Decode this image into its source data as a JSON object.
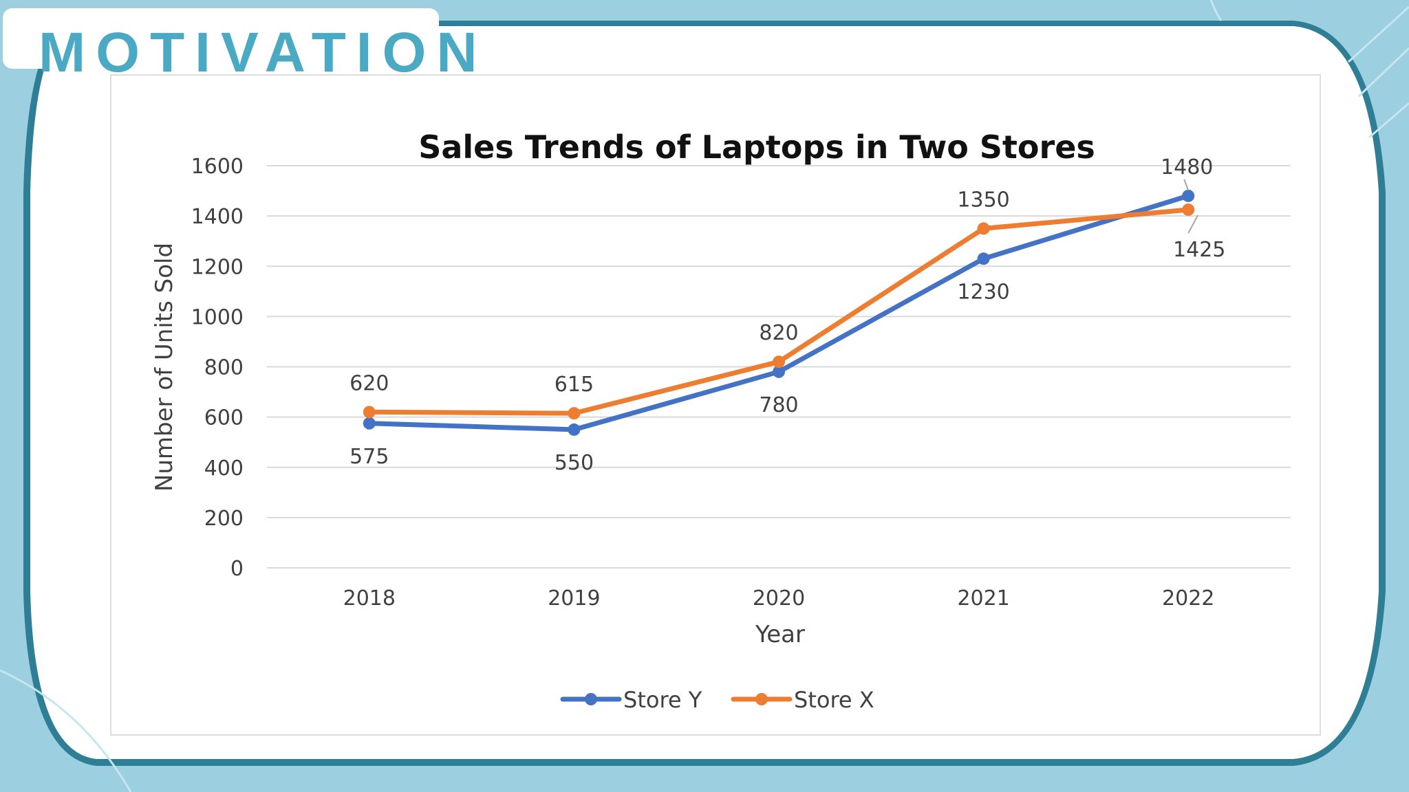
{
  "heading": "MOTIVATION",
  "colors": {
    "background": "#9ccfe0",
    "accent": "#4aaac4",
    "frame": "#2e7f96"
  },
  "chart_data": {
    "type": "line",
    "title": "Sales Trends of Laptops in Two Stores",
    "xlabel": "Year",
    "ylabel": "Number of Units Sold",
    "categories": [
      "2018",
      "2019",
      "2020",
      "2021",
      "2022"
    ],
    "ylim": [
      0,
      1600
    ],
    "yticks": [
      0,
      200,
      400,
      600,
      800,
      1000,
      1200,
      1400,
      1600
    ],
    "grid": true,
    "legend_position": "bottom",
    "series": [
      {
        "name": "Store Y",
        "color": "#4472c4",
        "values": [
          575,
          550,
          780,
          1230,
          1480
        ],
        "label_positions": [
          "below",
          "below",
          "below",
          "below",
          "above"
        ]
      },
      {
        "name": "Store X",
        "color": "#ed7d31",
        "values": [
          620,
          615,
          820,
          1350,
          1425
        ],
        "label_positions": [
          "above",
          "above",
          "above",
          "above",
          "below"
        ]
      }
    ]
  }
}
